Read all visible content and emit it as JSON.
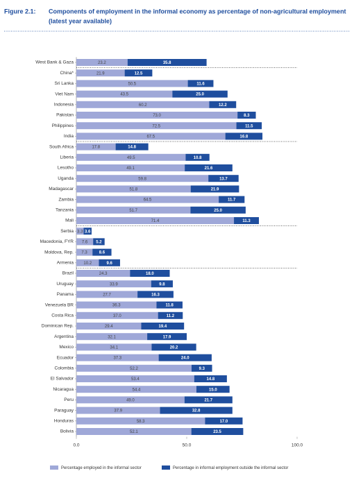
{
  "chart_data": {
    "type": "stacked-bar-horizontal",
    "figure_label": "Figure 2.1:",
    "title": "Components of employment in the informal economy as percentage of non-agricultural employment",
    "subtitle": "(latest year available)",
    "categories": [
      "West Bank & Gaza",
      "China*",
      "Sri Lanka",
      "Viet Nam",
      "Indonesia",
      "Pakistan",
      "Philippines",
      "India",
      "South Africa",
      "Liberia",
      "Lesotho",
      "Uganda",
      "Madagascar",
      "Zambia",
      "Tanzania",
      "Mali",
      "Serbia",
      "Macedonia, FYR",
      "Moldova, Rep.",
      "Armenia",
      "Brazil",
      "Uruguay",
      "Panama",
      "Venezuela BR",
      "Costa Rica",
      "Dominican Rep.",
      "Argentina",
      "Mexico",
      "Ecuador",
      "Colombia",
      "El Salvador",
      "Nicaragua",
      "Peru",
      "Paraguay",
      "Honduras",
      "Bolivia"
    ],
    "series": [
      {
        "name": "Percentage employed in the informal sector",
        "color": "#9fa8d8",
        "values": [
          23.2,
          21.9,
          50.5,
          43.5,
          60.2,
          73.0,
          72.5,
          67.5,
          17.8,
          49.5,
          49.1,
          59.8,
          51.8,
          64.5,
          51.7,
          71.4,
          3.3,
          7.6,
          7.3,
          10.2,
          24.3,
          33.9,
          27.7,
          36.3,
          37.0,
          29.4,
          32.1,
          34.1,
          37.3,
          52.2,
          53.4,
          54.4,
          49.0,
          37.9,
          58.3,
          52.1
        ],
        "value_labels": [
          "23.2",
          "21.9",
          "50.5",
          "43.5",
          "60.2",
          "73.0",
          "72.5",
          "67.5",
          "17.8",
          "49.5",
          "49.1",
          "59.8",
          "51.8",
          "64.5",
          "51.7",
          "71.4",
          "3.3",
          "7.6",
          "7.3",
          "10.2",
          "24.3",
          "33.9",
          "27.7",
          "36.3",
          "37.0",
          "29.4",
          "32.1",
          "34.1",
          "37.3",
          "52.2",
          "53.4",
          "54.4",
          "49.0",
          "37.9",
          "58.3",
          "52.1"
        ]
      },
      {
        "name": "Percentage in informal employment outside the informal sector",
        "color": "#1f4e9e",
        "values": [
          35.8,
          12.5,
          11.6,
          25.0,
          12.2,
          8.3,
          11.5,
          16.8,
          14.8,
          10.8,
          21.6,
          13.7,
          21.9,
          11.7,
          25.0,
          11.3,
          3.6,
          5.2,
          8.6,
          9.6,
          18.0,
          9.8,
          16.3,
          11.8,
          11.2,
          19.4,
          17.9,
          20.2,
          24.0,
          9.3,
          14.8,
          15.0,
          21.7,
          32.8,
          17.0,
          23.5
        ],
        "value_labels": [
          "35.8",
          "12.5",
          "11.6",
          "25.0",
          "12.2",
          "8.3",
          "11.5",
          "16.8",
          "14.8",
          "10.8",
          "21.6",
          "13.7",
          "21.9",
          "11.7",
          "25.0",
          "11.3",
          "3.6",
          "5.2",
          "8.6",
          "9.6",
          "18.0",
          "9.8",
          "16.3",
          "11.8",
          "11.2",
          "19.4",
          "17.9",
          "20.2",
          "24.0",
          "9.3",
          "14.8",
          "15.0",
          "21.7",
          "32.8",
          "17.0",
          "23.5"
        ]
      }
    ],
    "xlim": [
      0,
      100
    ],
    "xticks": [
      {
        "value": 0,
        "label": "0.0"
      },
      {
        "value": 50,
        "label": "50.0"
      },
      {
        "value": 100,
        "label": "100.0"
      }
    ]
  }
}
